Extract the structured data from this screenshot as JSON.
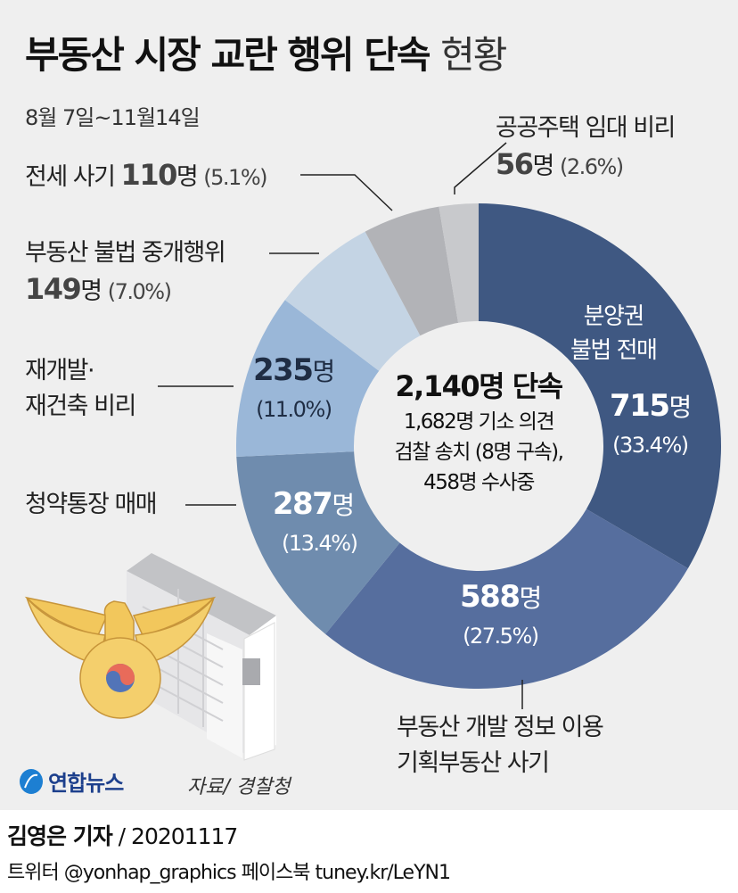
{
  "title": {
    "main": "부동산 시장 교란 행위 단속",
    "suffix": "현황"
  },
  "subtitle": "8월 7일~11월14일",
  "center": {
    "headline": "2,140명 단속",
    "line1": "1,682명 기소 의견",
    "line2": "검찰 송치 (8명 구속),",
    "line3": "458명 수사중"
  },
  "segments": [
    {
      "label_line1": "분양권",
      "label_line2": "불법 전매",
      "count": "715",
      "unit": "명",
      "pct": "(33.4%)",
      "color": "#3f5882",
      "text_color": "#ffffff"
    },
    {
      "label_line1": "부동산 개발 정보 이용",
      "label_line2": "기획부동산 사기",
      "count": "588",
      "unit": "명",
      "pct": "(27.5%)",
      "color": "#566e9e",
      "text_color": "#ffffff"
    },
    {
      "label_line1": "청약통장 매매",
      "count": "287",
      "unit": "명",
      "pct": "(13.4%)",
      "color": "#6f8cae",
      "text_color": "#ffffff"
    },
    {
      "label_line1": "재개발·",
      "label_line2": "재건축 비리",
      "count": "235",
      "unit": "명",
      "pct": "(11.0%)",
      "color": "#9ab7d8",
      "text_color": "#1f2d44"
    },
    {
      "label_line1": "부동산 불법 중개행위",
      "count": "149",
      "unit": "명",
      "pct": "(7.0%)",
      "color": "#c4d4e4",
      "text_color": "#444444"
    },
    {
      "label_line1": "전세 사기",
      "count": "110",
      "unit": "명",
      "pct": "(5.1%)",
      "color": "#b2b3b7",
      "text_color": "#444444"
    },
    {
      "label_line1": "공공주택 임대 비리",
      "count": "56",
      "unit": "명",
      "pct": "(2.6%)",
      "color": "#c8c9cc",
      "text_color": "#444444"
    }
  ],
  "source": "자료/ 경찰청",
  "logo": "연합뉴스",
  "footer": {
    "reporter": "김영은 기자",
    "date": " / 20201117",
    "social": "트위터 @yonhap_graphics  페이스북 tuney.kr/LeYN1"
  },
  "chart_data": {
    "type": "pie",
    "variant": "donut",
    "title": "부동산 시장 교란 행위 단속 현황",
    "subtitle": "8월 7일~11월14일",
    "total": 2140,
    "center_text": [
      "2,140명 단속",
      "1,682명 기소 의견",
      "검찰 송치 (8명 구속),",
      "458명 수사중"
    ],
    "categories": [
      "분양권 불법 전매",
      "부동산 개발 정보 이용 기획부동산 사기",
      "청약통장 매매",
      "재개발·재건축 비리",
      "부동산 불법 중개행위",
      "전세 사기",
      "공공주택 임대 비리"
    ],
    "values": [
      715,
      588,
      287,
      235,
      149,
      110,
      56
    ],
    "percentages": [
      33.4,
      27.5,
      13.4,
      11.0,
      7.0,
      5.1,
      2.6
    ],
    "colors": [
      "#3f5882",
      "#566e9e",
      "#6f8cae",
      "#9ab7d8",
      "#c4d4e4",
      "#b2b3b7",
      "#c8c9cc"
    ],
    "start_angle": "12 o'clock",
    "direction": "clockwise",
    "unit": "명",
    "source": "경찰청"
  }
}
